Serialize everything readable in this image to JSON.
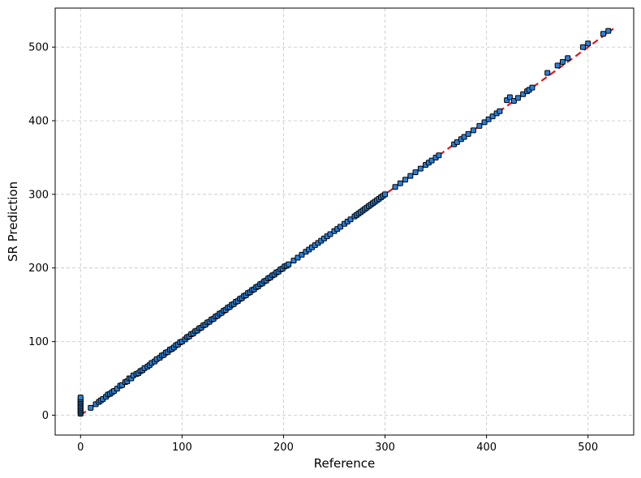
{
  "chart_data": {
    "type": "scatter",
    "xlabel": "Reference",
    "ylabel": "SR Prediction",
    "xlim": [
      -25,
      545
    ],
    "ylim": [
      -27,
      553
    ],
    "xticks": [
      0,
      100,
      200,
      300,
      400,
      500
    ],
    "yticks": [
      0,
      100,
      200,
      300,
      400,
      500
    ],
    "grid": true,
    "colors": {
      "point_fill": "#2a80d8",
      "point_edge": "#000000",
      "reference_line": "#e8141c",
      "grid": "#cccccc"
    },
    "reference_line": {
      "x": [
        0,
        525
      ],
      "y": [
        0,
        525
      ],
      "style": "dashed"
    },
    "series": [
      {
        "x": [
          0,
          0,
          0,
          0,
          0,
          0,
          0,
          0,
          0,
          0,
          0,
          0,
          10,
          15,
          18,
          20,
          22,
          25,
          27,
          29,
          31,
          33,
          36,
          39,
          41,
          44,
          46,
          48,
          50,
          52,
          55,
          57,
          59,
          61,
          63,
          66,
          68,
          70,
          73,
          75,
          78,
          80,
          82,
          84,
          86,
          88,
          90,
          92,
          94,
          96,
          98,
          100,
          103,
          105,
          107,
          109,
          111,
          113,
          115,
          117,
          119,
          121,
          123,
          125,
          127,
          129,
          131,
          133,
          135,
          137,
          139,
          141,
          143,
          145,
          147,
          149,
          151,
          153,
          155,
          157,
          159,
          161,
          163,
          165,
          167,
          169,
          171,
          173,
          175,
          177,
          179,
          181,
          183,
          185,
          187,
          189,
          191,
          193,
          195,
          197,
          199,
          201,
          203,
          205,
          210,
          214,
          218,
          222,
          225,
          228,
          231,
          234,
          237,
          240,
          243,
          246,
          250,
          253,
          256,
          260,
          263,
          266,
          270,
          272,
          274,
          276,
          278,
          280,
          282,
          284,
          286,
          288,
          290,
          292,
          294,
          296,
          298,
          300,
          310,
          315,
          320,
          325,
          330,
          335,
          340,
          343,
          346,
          350,
          353,
          368,
          371,
          375,
          378,
          382,
          387,
          393,
          398,
          402,
          406,
          410,
          413,
          420,
          423,
          427,
          431,
          436,
          440,
          442,
          445,
          460,
          470,
          475,
          480,
          495,
          500,
          515,
          520
        ],
        "y": [
          2,
          4,
          6,
          8,
          10,
          12,
          14,
          16,
          18,
          20,
          22,
          24,
          10,
          15,
          18,
          20,
          22,
          25,
          28,
          29,
          31,
          33,
          36,
          40,
          41,
          45,
          46,
          50,
          50,
          54,
          56,
          57,
          60,
          61,
          64,
          66,
          68,
          71,
          73,
          76,
          78,
          81,
          82,
          85,
          86,
          89,
          90,
          92,
          95,
          96,
          99,
          100,
          103,
          106,
          107,
          110,
          111,
          114,
          115,
          118,
          119,
          122,
          123,
          126,
          127,
          130,
          131,
          134,
          135,
          138,
          139,
          142,
          143,
          146,
          147,
          150,
          151,
          154,
          155,
          158,
          159,
          162,
          163,
          166,
          167,
          170,
          171,
          174,
          175,
          178,
          179,
          182,
          183,
          186,
          187,
          190,
          191,
          194,
          195,
          198,
          199,
          202,
          203,
          205,
          210,
          214,
          218,
          222,
          225,
          228,
          231,
          234,
          237,
          240,
          243,
          246,
          250,
          253,
          256,
          260,
          263,
          266,
          270,
          272,
          274,
          276,
          278,
          280,
          282,
          284,
          286,
          288,
          290,
          292,
          294,
          296,
          298,
          300,
          310,
          315,
          320,
          325,
          330,
          335,
          340,
          343,
          346,
          350,
          353,
          368,
          371,
          375,
          378,
          382,
          387,
          393,
          398,
          402,
          406,
          410,
          413,
          428,
          432,
          427,
          431,
          436,
          440,
          442,
          445,
          465,
          475,
          480,
          485,
          500,
          505,
          518,
          522
        ]
      }
    ]
  }
}
